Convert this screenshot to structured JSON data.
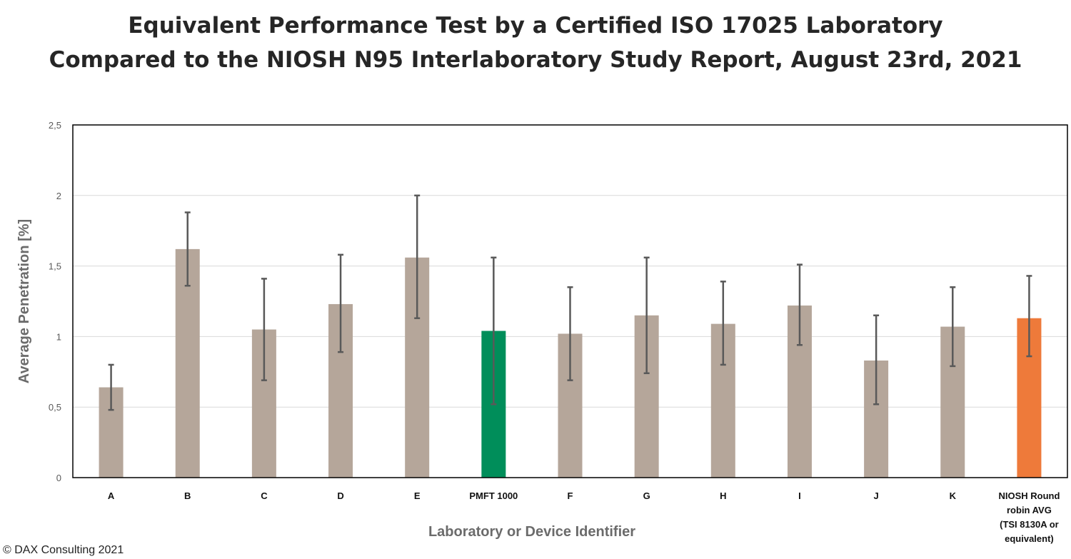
{
  "title_line1": "Equivalent Performance Test by a Certified ISO 17025 Laboratory",
  "title_line2": "Compared to the NIOSH N95 Interlaboratory Study Report, August 23rd, 2021",
  "footer": "© DAX Consulting 2021",
  "chart_data": {
    "type": "bar",
    "title": "Equivalent Performance Test by a Certified ISO 17025 Laboratory Compared to the NIOSH N95 Interlaboratory Study Report, August 23rd, 2021",
    "xlabel": "Laboratory or Device Identifier",
    "ylabel": "Average Penetration [%]",
    "ylim": [
      0,
      2.5
    ],
    "yticks": [
      "0",
      "0,5",
      "1",
      "1,5",
      "2",
      "2,5"
    ],
    "ytick_values": [
      0,
      0.5,
      1,
      1.5,
      2,
      2.5
    ],
    "grid": true,
    "categories": [
      "A",
      "B",
      "C",
      "D",
      "E",
      "PMFT 1000",
      "F",
      "G",
      "H",
      "I",
      "J",
      "K",
      "NIOSH Round robin AVG (TSI 8130A or equivalent)"
    ],
    "category_lines": [
      [
        "A"
      ],
      [
        "B"
      ],
      [
        "C"
      ],
      [
        "D"
      ],
      [
        "E"
      ],
      [
        "PMFT 1000"
      ],
      [
        "F"
      ],
      [
        "G"
      ],
      [
        "H"
      ],
      [
        "I"
      ],
      [
        "J"
      ],
      [
        "K"
      ],
      [
        "NIOSH Round",
        "robin AVG",
        "(TSI 8130A or",
        "equivalent)"
      ]
    ],
    "values": [
      0.64,
      1.62,
      1.05,
      1.23,
      1.56,
      1.04,
      1.02,
      1.15,
      1.09,
      1.22,
      0.83,
      1.07,
      1.13
    ],
    "error_high": [
      0.8,
      1.88,
      1.41,
      1.58,
      2.0,
      1.56,
      1.35,
      1.56,
      1.39,
      1.51,
      1.15,
      1.35,
      1.43
    ],
    "error_low": [
      0.48,
      1.36,
      0.69,
      0.89,
      1.13,
      0.52,
      0.69,
      0.74,
      0.8,
      0.94,
      0.52,
      0.79,
      0.86
    ],
    "colors": [
      "#b5a69a",
      "#b5a69a",
      "#b5a69a",
      "#b5a69a",
      "#b5a69a",
      "#008e5a",
      "#b5a69a",
      "#b5a69a",
      "#b5a69a",
      "#b5a69a",
      "#b5a69a",
      "#b5a69a",
      "#ee7a3a"
    ],
    "error_bar_color": "#595959"
  }
}
